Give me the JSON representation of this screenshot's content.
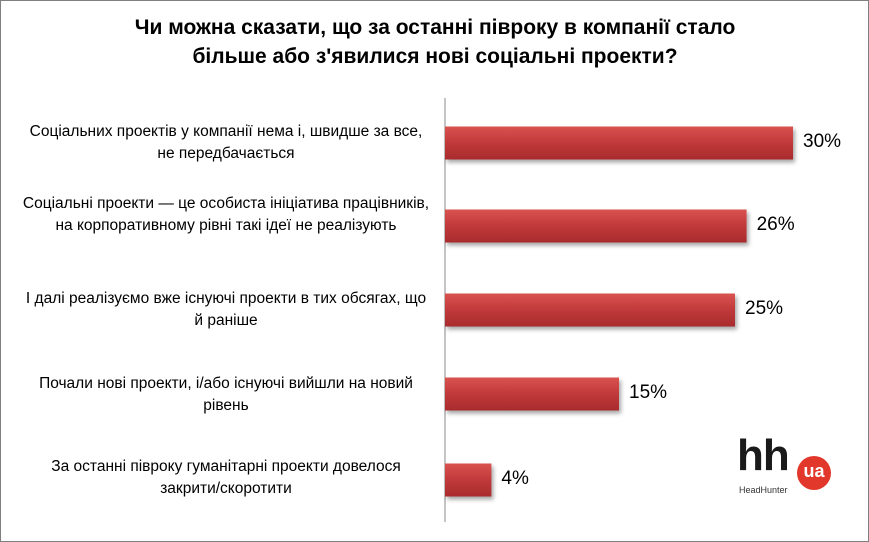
{
  "chart_data": {
    "type": "bar",
    "orientation": "horizontal",
    "title": "Чи можна сказати, що за останні півроку в компанії стало більше або з'явилися нові соціальні проекти?",
    "title_lines": [
      "Чи можна сказати, що за останні півроку в компанії стало",
      "більше або з'явилися нові соціальні проекти?"
    ],
    "categories": [
      "Соціальних проектів у компанії нема і, швидше за все, не передбачається",
      "Соціальні проекти — це особиста ініціатива працівників, на корпоративному рівні такі ідеї не реалізують",
      "І далі реалізуємо вже існуючі проекти в тих обсягах, що й раніше",
      "Почали нові проекти, і/або існуючі вийшли на новий рівень",
      "За останні півроку гуманітарні проекти довелося закрити/скоротити"
    ],
    "values": [
      30,
      26,
      25,
      15,
      4
    ],
    "value_labels": [
      "30%",
      "26%",
      "25%",
      "15%",
      "4%"
    ],
    "unit": "%",
    "xlim": [
      0,
      35
    ],
    "bar_color": "#c0393b",
    "grid": false
  },
  "logo": {
    "mark": "hh",
    "badge": "ua",
    "name": "HeadHunter"
  }
}
